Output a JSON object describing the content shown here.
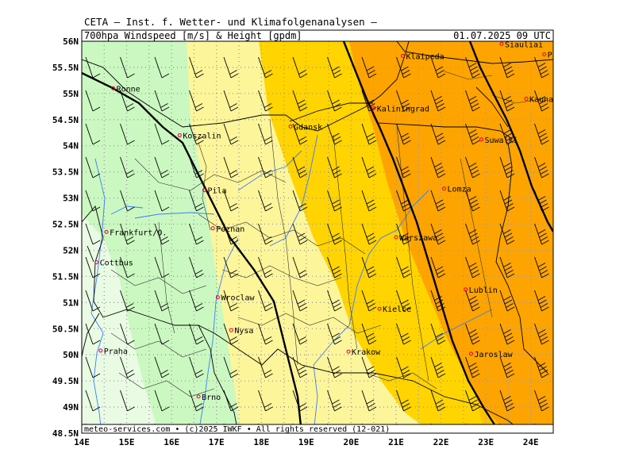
{
  "header": "CETA – Inst. f. Wetter- und Klimafolgenanalysen –",
  "panel": {
    "title_left": "700hpa Windspeed [m/s] & Height [gpdm]",
    "title_right": "01.07.2025 09 UTC",
    "footer": "meteo-services.com • (c)2025 IWKF • All rights reserved (12-021)"
  },
  "axes": {
    "lon_labels": [
      "14E",
      "15E",
      "16E",
      "17E",
      "18E",
      "19E",
      "20E",
      "21E",
      "22E",
      "23E",
      "24E"
    ],
    "lat_labels": [
      "56N",
      "55.5N",
      "55N",
      "54.5N",
      "54N",
      "53.5N",
      "53N",
      "52.5N",
      "52N",
      "51.5N",
      "51N",
      "50.5N",
      "50N",
      "49.5N",
      "49N",
      "48.5N"
    ]
  },
  "colors": {
    "pale_green": "#e9fbe3",
    "light_green": "#cbf8c1",
    "pale_yellow": "#fdf59a",
    "yellow": "#ffd400",
    "orange_light": "#fec300",
    "orange": "#fea400",
    "city": "#e0003c",
    "border": "#000000",
    "river": "#3a7cff"
  },
  "cities": [
    {
      "name": "Siauliai",
      "lon": 23.35,
      "lat": 55.95
    },
    {
      "name": "Panevezys",
      "lon": 24.3,
      "lat": 55.75
    },
    {
      "name": "Klaipeda",
      "lon": 21.15,
      "lat": 55.72
    },
    {
      "name": "Kaunas",
      "lon": 23.9,
      "lat": 54.9
    },
    {
      "name": "Ronne",
      "lon": 14.7,
      "lat": 55.1
    },
    {
      "name": "Kaliningrad",
      "lon": 20.5,
      "lat": 54.72
    },
    {
      "name": "Gdansk",
      "lon": 18.65,
      "lat": 54.37
    },
    {
      "name": "Koszalin",
      "lon": 16.18,
      "lat": 54.2
    },
    {
      "name": "Suwalki",
      "lon": 22.9,
      "lat": 54.12
    },
    {
      "name": "Pila",
      "lon": 16.73,
      "lat": 53.15
    },
    {
      "name": "Lomza",
      "lon": 22.07,
      "lat": 53.18
    },
    {
      "name": "Poznan",
      "lon": 16.92,
      "lat": 52.42
    },
    {
      "name": "Frankfurt/O.",
      "lon": 14.55,
      "lat": 52.35
    },
    {
      "name": "Warszawa",
      "lon": 21.0,
      "lat": 52.25
    },
    {
      "name": "Cottbus",
      "lon": 14.33,
      "lat": 51.77
    },
    {
      "name": "Lublin",
      "lon": 22.55,
      "lat": 51.25
    },
    {
      "name": "Wroclaw",
      "lon": 17.03,
      "lat": 51.1
    },
    {
      "name": "Kielce",
      "lon": 20.63,
      "lat": 50.88
    },
    {
      "name": "Nysa",
      "lon": 17.33,
      "lat": 50.47
    },
    {
      "name": "Praha",
      "lon": 14.42,
      "lat": 50.08
    },
    {
      "name": "Krakow",
      "lon": 19.94,
      "lat": 50.06
    },
    {
      "name": "Jaroslaw",
      "lon": 22.67,
      "lat": 50.02
    },
    {
      "name": "Brno",
      "lon": 16.6,
      "lat": 49.2
    }
  ]
}
